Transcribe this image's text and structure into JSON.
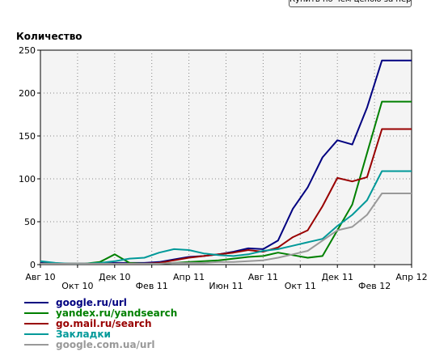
{
  "top_button": {
    "label": "Купить по чём ценою за переход"
  },
  "chart_data": {
    "type": "line",
    "ylabel": "Количество",
    "xlabel": "",
    "ylim": [
      0,
      250
    ],
    "yticks": [
      0,
      50,
      100,
      150,
      200,
      250
    ],
    "x_range": [
      0,
      20
    ],
    "x_ticks": [
      {
        "x": 0,
        "label": "Авг 10",
        "row": 0
      },
      {
        "x": 2,
        "label": "Окт 10",
        "row": 1
      },
      {
        "x": 4,
        "label": "Дек 10",
        "row": 0
      },
      {
        "x": 6,
        "label": "Фев 11",
        "row": 1
      },
      {
        "x": 8,
        "label": "Апр 11",
        "row": 0
      },
      {
        "x": 10,
        "label": "Июн 11",
        "row": 1
      },
      {
        "x": 12,
        "label": "Авг 11",
        "row": 0
      },
      {
        "x": 14,
        "label": "Окт 11",
        "row": 1
      },
      {
        "x": 16,
        "label": "Дек 11",
        "row": 0
      },
      {
        "x": 18,
        "label": "Фев 12",
        "row": 1
      },
      {
        "x": 20,
        "label": "Апр 12",
        "row": 0
      }
    ],
    "grid": true,
    "legend_position": "bottom-left",
    "x": [
      0,
      0.8,
      1.6,
      2.4,
      3.2,
      4.0,
      4.8,
      5.6,
      6.4,
      7.2,
      8.0,
      8.8,
      9.6,
      10.4,
      11.2,
      12.0,
      12.8,
      13.6,
      14.4,
      15.2,
      16.0,
      16.8,
      17.6,
      18.4,
      19.2,
      20.0
    ],
    "series": [
      {
        "name": "google.ru/url",
        "color": "#000080",
        "values": [
          2,
          1,
          1,
          1,
          1,
          2,
          2,
          2,
          3,
          6,
          9,
          10,
          12,
          15,
          19,
          18,
          28,
          65,
          90,
          125,
          145,
          140,
          183,
          238,
          238,
          238
        ]
      },
      {
        "name": "yandex.ru/yandsearch",
        "color": "#008000",
        "values": [
          1,
          1,
          1,
          1,
          3,
          12,
          2,
          1,
          1,
          2,
          3,
          4,
          5,
          7,
          9,
          10,
          14,
          11,
          8,
          10,
          40,
          70,
          130,
          190,
          190,
          190
        ]
      },
      {
        "name": "go.mail.ru/search",
        "color": "#990000",
        "values": [
          1,
          1,
          1,
          1,
          1,
          1,
          1,
          1,
          2,
          5,
          8,
          10,
          12,
          14,
          17,
          15,
          20,
          32,
          40,
          68,
          101,
          97,
          102,
          158,
          158,
          158
        ]
      },
      {
        "name": "Закладки",
        "color": "#009999",
        "values": [
          4,
          2,
          1,
          1,
          2,
          4,
          7,
          8,
          14,
          18,
          17,
          13,
          11,
          10,
          12,
          16,
          18,
          22,
          26,
          30,
          45,
          58,
          75,
          109,
          109,
          109
        ]
      },
      {
        "name": "google.com.ua/url",
        "color": "#999999",
        "values": [
          1,
          1,
          1,
          1,
          1,
          1,
          1,
          1,
          1,
          2,
          2,
          2,
          3,
          3,
          4,
          5,
          8,
          12,
          16,
          28,
          40,
          44,
          58,
          83,
          83,
          83
        ]
      }
    ]
  }
}
